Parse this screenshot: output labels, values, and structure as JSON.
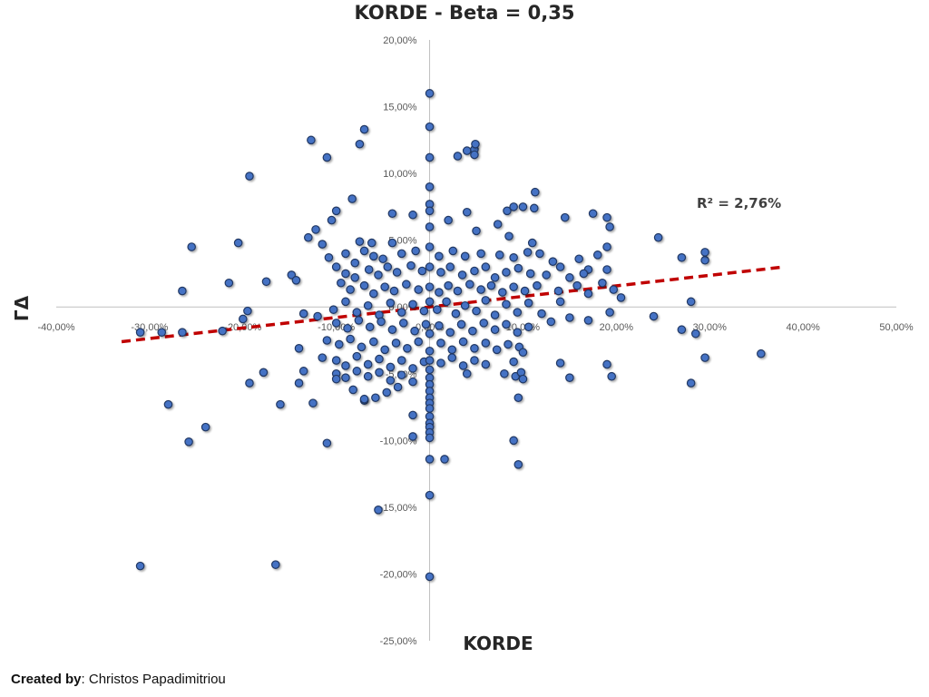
{
  "chart_data": {
    "type": "scatter",
    "title": "KORDE - Beta = 0,35",
    "xlabel": "KORDE",
    "ylabel": "ΓΔ",
    "xlim": [
      -0.4,
      0.5
    ],
    "ylim": [
      -0.25,
      0.2
    ],
    "x_ticks": [
      "-40,00%",
      "-30,00%",
      "-20,00%",
      "-10,00%",
      "0,00%",
      "10,00%",
      "20,00%",
      "30,00%",
      "40,00%",
      "50,00%"
    ],
    "y_ticks": [
      "20,00%",
      "15,00%",
      "10,00%",
      "5,00%",
      "0,00%",
      "-5,00%",
      "-10,00%",
      "-15,00%",
      "-20,00%",
      "-25,00%"
    ],
    "annotation": "R² = 2,76%",
    "trendline": {
      "x": [
        -0.33,
        0.38
      ],
      "y": [
        -0.026,
        0.03
      ]
    },
    "colors": {
      "points": "#4472C4",
      "point_edge": "#203864",
      "trendline": "#C00000"
    },
    "points": [
      [
        0.0,
        0.16
      ],
      [
        0.0,
        0.135
      ],
      [
        -0.127,
        0.125
      ],
      [
        -0.07,
        0.133
      ],
      [
        -0.075,
        0.122
      ],
      [
        -0.11,
        0.112
      ],
      [
        0.0,
        0.112
      ],
      [
        0.03,
        0.113
      ],
      [
        0.04,
        0.117
      ],
      [
        0.048,
        0.118
      ],
      [
        0.049,
        0.122
      ],
      [
        0.048,
        0.114
      ],
      [
        -0.193,
        0.098
      ],
      [
        0.0,
        0.09
      ],
      [
        -0.083,
        0.081
      ],
      [
        0.113,
        0.086
      ],
      [
        -0.1,
        0.072
      ],
      [
        -0.04,
        0.07
      ],
      [
        -0.018,
        0.069
      ],
      [
        0.0,
        0.077
      ],
      [
        0.0,
        0.072
      ],
      [
        0.04,
        0.071
      ],
      [
        0.083,
        0.072
      ],
      [
        0.09,
        0.075
      ],
      [
        0.1,
        0.075
      ],
      [
        0.112,
        0.074
      ],
      [
        0.145,
        0.067
      ],
      [
        0.175,
        0.07
      ],
      [
        0.19,
        0.067
      ],
      [
        0.193,
        0.06
      ],
      [
        -0.105,
        0.065
      ],
      [
        -0.122,
        0.058
      ],
      [
        -0.205,
        0.048
      ],
      [
        -0.255,
        0.045
      ],
      [
        -0.13,
        0.052
      ],
      [
        -0.115,
        0.047
      ],
      [
        -0.075,
        0.049
      ],
      [
        -0.062,
        0.048
      ],
      [
        -0.04,
        0.048
      ],
      [
        0.0,
        0.06
      ],
      [
        0.02,
        0.065
      ],
      [
        0.05,
        0.057
      ],
      [
        0.073,
        0.062
      ],
      [
        0.085,
        0.053
      ],
      [
        0.11,
        0.048
      ],
      [
        0.245,
        0.052
      ],
      [
        0.19,
        0.045
      ],
      [
        -0.108,
        0.037
      ],
      [
        -0.09,
        0.04
      ],
      [
        -0.08,
        0.033
      ],
      [
        -0.07,
        0.042
      ],
      [
        -0.06,
        0.038
      ],
      [
        -0.05,
        0.036
      ],
      [
        -0.03,
        0.04
      ],
      [
        -0.015,
        0.042
      ],
      [
        0.0,
        0.045
      ],
      [
        0.01,
        0.038
      ],
      [
        0.025,
        0.042
      ],
      [
        0.038,
        0.038
      ],
      [
        0.055,
        0.04
      ],
      [
        0.075,
        0.039
      ],
      [
        0.09,
        0.037
      ],
      [
        0.105,
        0.041
      ],
      [
        0.118,
        0.04
      ],
      [
        0.132,
        0.034
      ],
      [
        0.14,
        0.03
      ],
      [
        0.16,
        0.036
      ],
      [
        0.17,
        0.028
      ],
      [
        0.18,
        0.039
      ],
      [
        0.27,
        0.037
      ],
      [
        0.295,
        0.035
      ],
      [
        0.295,
        0.041
      ],
      [
        -0.1,
        0.03
      ],
      [
        -0.09,
        0.025
      ],
      [
        -0.08,
        0.022
      ],
      [
        -0.065,
        0.028
      ],
      [
        -0.055,
        0.024
      ],
      [
        -0.045,
        0.03
      ],
      [
        -0.035,
        0.026
      ],
      [
        -0.02,
        0.031
      ],
      [
        -0.008,
        0.027
      ],
      [
        0.0,
        0.03
      ],
      [
        0.012,
        0.026
      ],
      [
        0.022,
        0.03
      ],
      [
        0.035,
        0.024
      ],
      [
        0.048,
        0.027
      ],
      [
        0.06,
        0.03
      ],
      [
        0.07,
        0.022
      ],
      [
        0.082,
        0.026
      ],
      [
        0.095,
        0.029
      ],
      [
        0.108,
        0.025
      ],
      [
        0.125,
        0.024
      ],
      [
        0.15,
        0.022
      ],
      [
        0.165,
        0.025
      ],
      [
        0.19,
        0.028
      ],
      [
        -0.148,
        0.024
      ],
      [
        -0.143,
        0.02
      ],
      [
        -0.175,
        0.019
      ],
      [
        -0.215,
        0.018
      ],
      [
        -0.265,
        0.012
      ],
      [
        -0.095,
        0.018
      ],
      [
        -0.085,
        0.013
      ],
      [
        -0.07,
        0.016
      ],
      [
        -0.06,
        0.01
      ],
      [
        -0.048,
        0.015
      ],
      [
        -0.038,
        0.012
      ],
      [
        -0.025,
        0.017
      ],
      [
        -0.012,
        0.013
      ],
      [
        0.0,
        0.015
      ],
      [
        0.01,
        0.011
      ],
      [
        0.02,
        0.016
      ],
      [
        0.03,
        0.012
      ],
      [
        0.043,
        0.017
      ],
      [
        0.055,
        0.013
      ],
      [
        0.066,
        0.016
      ],
      [
        0.078,
        0.011
      ],
      [
        0.09,
        0.015
      ],
      [
        0.102,
        0.012
      ],
      [
        0.115,
        0.016
      ],
      [
        0.138,
        0.012
      ],
      [
        0.158,
        0.016
      ],
      [
        0.17,
        0.01
      ],
      [
        0.185,
        0.018
      ],
      [
        0.197,
        0.013
      ],
      [
        0.205,
        0.007
      ],
      [
        0.28,
        0.004
      ],
      [
        -0.195,
        -0.003
      ],
      [
        -0.2,
        -0.009
      ],
      [
        -0.135,
        -0.005
      ],
      [
        -0.12,
        -0.007
      ],
      [
        -0.103,
        -0.002
      ],
      [
        -0.09,
        0.004
      ],
      [
        -0.078,
        -0.004
      ],
      [
        -0.066,
        0.001
      ],
      [
        -0.054,
        -0.006
      ],
      [
        -0.042,
        0.003
      ],
      [
        -0.03,
        -0.004
      ],
      [
        -0.018,
        0.002
      ],
      [
        -0.006,
        -0.003
      ],
      [
        0.0,
        0.004
      ],
      [
        0.008,
        -0.002
      ],
      [
        0.018,
        0.004
      ],
      [
        0.028,
        -0.005
      ],
      [
        0.038,
        0.001
      ],
      [
        0.05,
        -0.003
      ],
      [
        0.06,
        0.005
      ],
      [
        0.07,
        -0.006
      ],
      [
        0.082,
        0.002
      ],
      [
        0.094,
        -0.004
      ],
      [
        0.106,
        0.003
      ],
      [
        0.12,
        -0.005
      ],
      [
        0.13,
        -0.011
      ],
      [
        0.14,
        0.004
      ],
      [
        0.15,
        -0.008
      ],
      [
        0.17,
        -0.01
      ],
      [
        0.193,
        -0.004
      ],
      [
        0.24,
        -0.007
      ],
      [
        0.27,
        -0.017
      ],
      [
        0.285,
        -0.02
      ],
      [
        -0.287,
        -0.019
      ],
      [
        -0.265,
        -0.019
      ],
      [
        -0.222,
        -0.018
      ],
      [
        -0.31,
        -0.019
      ],
      [
        -0.1,
        -0.012
      ],
      [
        -0.088,
        -0.016
      ],
      [
        -0.076,
        -0.01
      ],
      [
        -0.064,
        -0.015
      ],
      [
        -0.052,
        -0.011
      ],
      [
        -0.04,
        -0.017
      ],
      [
        -0.028,
        -0.012
      ],
      [
        -0.016,
        -0.018
      ],
      [
        -0.004,
        -0.013
      ],
      [
        0.0,
        -0.02
      ],
      [
        0.01,
        -0.014
      ],
      [
        0.022,
        -0.019
      ],
      [
        0.034,
        -0.013
      ],
      [
        0.046,
        -0.018
      ],
      [
        0.058,
        -0.012
      ],
      [
        0.07,
        -0.017
      ],
      [
        0.082,
        -0.013
      ],
      [
        0.094,
        -0.019
      ],
      [
        0.106,
        -0.015
      ],
      [
        -0.11,
        -0.025
      ],
      [
        -0.097,
        -0.028
      ],
      [
        -0.085,
        -0.024
      ],
      [
        -0.073,
        -0.03
      ],
      [
        -0.06,
        -0.026
      ],
      [
        -0.048,
        -0.032
      ],
      [
        -0.036,
        -0.027
      ],
      [
        -0.024,
        -0.031
      ],
      [
        -0.012,
        -0.026
      ],
      [
        0.0,
        -0.033
      ],
      [
        0.012,
        -0.027
      ],
      [
        0.024,
        -0.032
      ],
      [
        0.036,
        -0.026
      ],
      [
        0.048,
        -0.031
      ],
      [
        0.06,
        -0.027
      ],
      [
        0.072,
        -0.032
      ],
      [
        0.084,
        -0.028
      ],
      [
        0.096,
        -0.03
      ],
      [
        0.1,
        -0.034
      ],
      [
        -0.14,
        -0.031
      ],
      [
        -0.115,
        -0.038
      ],
      [
        -0.1,
        -0.04
      ],
      [
        -0.09,
        -0.044
      ],
      [
        -0.078,
        -0.037
      ],
      [
        -0.066,
        -0.043
      ],
      [
        -0.054,
        -0.039
      ],
      [
        -0.042,
        -0.045
      ],
      [
        -0.03,
        -0.04
      ],
      [
        -0.018,
        -0.046
      ],
      [
        -0.006,
        -0.041
      ],
      [
        0.0,
        -0.04
      ],
      [
        0.0,
        -0.047
      ],
      [
        0.012,
        -0.042
      ],
      [
        0.024,
        -0.038
      ],
      [
        0.036,
        -0.044
      ],
      [
        0.048,
        -0.04
      ],
      [
        0.06,
        -0.043
      ],
      [
        0.09,
        -0.041
      ],
      [
        0.14,
        -0.042
      ],
      [
        0.19,
        -0.043
      ],
      [
        0.295,
        -0.038
      ],
      [
        0.355,
        -0.035
      ],
      [
        -0.178,
        -0.049
      ],
      [
        -0.135,
        -0.048
      ],
      [
        -0.1,
        -0.05
      ],
      [
        -0.09,
        -0.053
      ],
      [
        -0.078,
        -0.048
      ],
      [
        -0.066,
        -0.052
      ],
      [
        -0.054,
        -0.049
      ],
      [
        -0.042,
        -0.055
      ],
      [
        -0.03,
        -0.051
      ],
      [
        -0.018,
        -0.056
      ],
      [
        0.0,
        -0.053
      ],
      [
        0.0,
        -0.058
      ],
      [
        0.04,
        -0.05
      ],
      [
        0.08,
        -0.05
      ],
      [
        0.092,
        -0.052
      ],
      [
        0.098,
        -0.049
      ],
      [
        0.1,
        -0.054
      ],
      [
        0.15,
        -0.053
      ],
      [
        0.195,
        -0.052
      ],
      [
        -0.193,
        -0.057
      ],
      [
        -0.14,
        -0.057
      ],
      [
        -0.1,
        -0.054
      ],
      [
        -0.082,
        -0.062
      ],
      [
        -0.07,
        -0.07
      ],
      [
        -0.058,
        -0.068
      ],
      [
        -0.046,
        -0.064
      ],
      [
        -0.034,
        -0.06
      ],
      [
        0.0,
        -0.063
      ],
      [
        0.0,
        -0.068
      ],
      [
        0.0,
        -0.072
      ],
      [
        0.095,
        -0.068
      ],
      [
        0.28,
        -0.057
      ],
      [
        -0.28,
        -0.073
      ],
      [
        -0.16,
        -0.073
      ],
      [
        -0.125,
        -0.072
      ],
      [
        -0.07,
        -0.069
      ],
      [
        -0.018,
        -0.081
      ],
      [
        0.0,
        -0.076
      ],
      [
        0.0,
        -0.082
      ],
      [
        0.0,
        -0.087
      ],
      [
        0.0,
        -0.09
      ],
      [
        -0.24,
        -0.09
      ],
      [
        -0.018,
        -0.097
      ],
      [
        0.0,
        -0.094
      ],
      [
        0.0,
        -0.098
      ],
      [
        0.09,
        -0.1
      ],
      [
        -0.258,
        -0.101
      ],
      [
        -0.11,
        -0.102
      ],
      [
        0.0,
        -0.114
      ],
      [
        0.016,
        -0.114
      ],
      [
        0.095,
        -0.118
      ],
      [
        -0.055,
        -0.152
      ],
      [
        0.0,
        -0.141
      ],
      [
        -0.31,
        -0.194
      ],
      [
        -0.165,
        -0.193
      ],
      [
        0.0,
        -0.202
      ]
    ]
  },
  "credit": {
    "label": "Created by",
    "sep": ": ",
    "name": "Christos Papadimitriou"
  }
}
